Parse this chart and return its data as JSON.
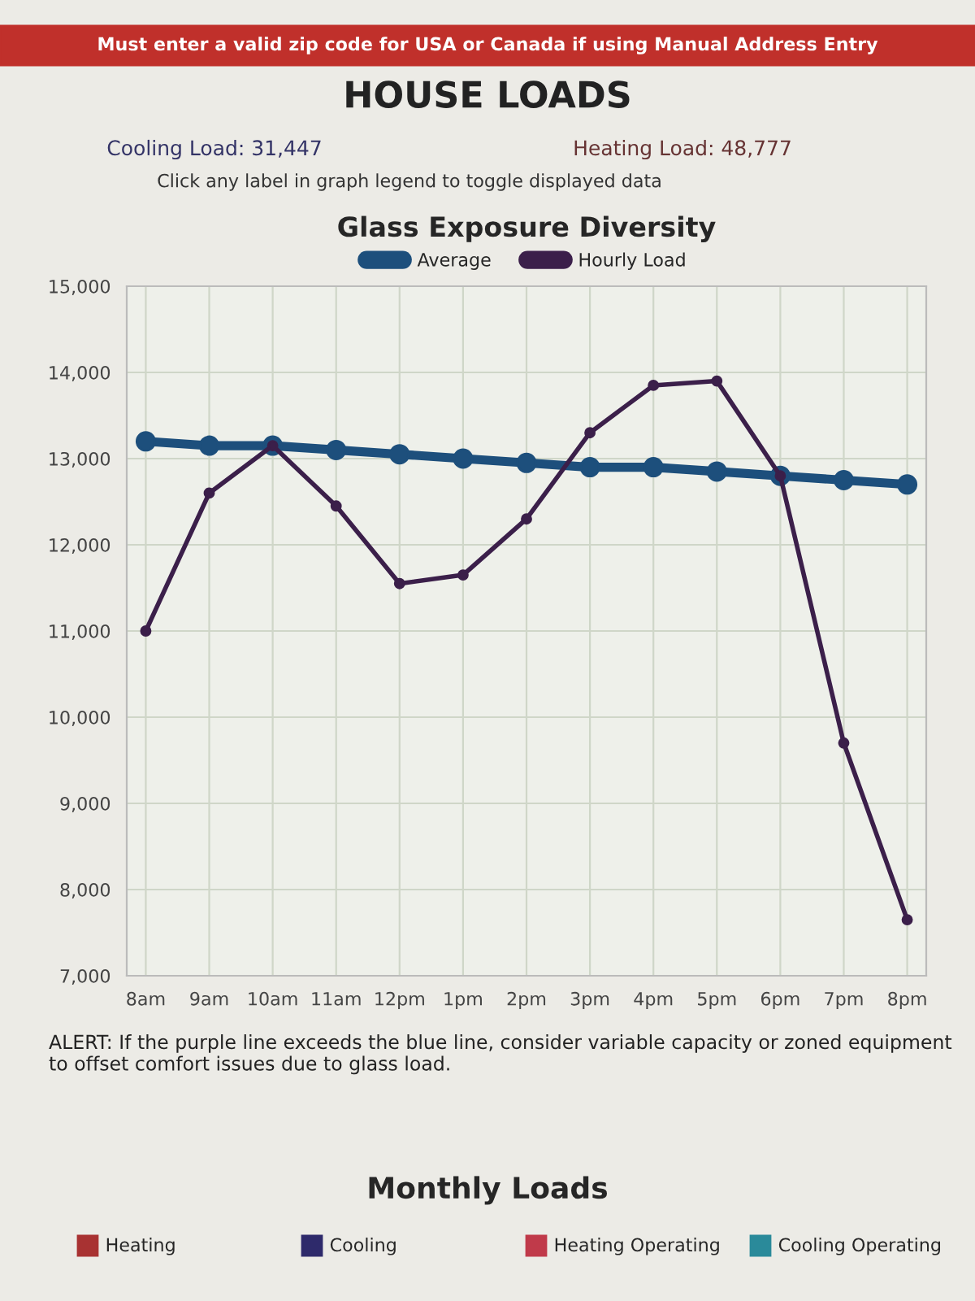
{
  "chart_data": [
    {
      "type": "line",
      "title": "Glass Exposure Diversity",
      "categories": [
        "8am",
        "9am",
        "10am",
        "11am",
        "12pm",
        "1pm",
        "2pm",
        "3pm",
        "4pm",
        "5pm",
        "6pm",
        "7pm",
        "8pm"
      ],
      "series": [
        {
          "name": "Average",
          "color": "#1d4f7c",
          "values": [
            13200,
            13150,
            13150,
            13100,
            13050,
            13000,
            12950,
            12900,
            12900,
            12850,
            12800,
            12750,
            12700
          ]
        },
        {
          "name": "Hourly Load",
          "color": "#3b1f4a",
          "values": [
            11000,
            12600,
            13150,
            12450,
            11550,
            11650,
            12300,
            13300,
            13850,
            13900,
            12800,
            9700,
            7650
          ]
        }
      ],
      "ylim": [
        7000,
        15000
      ],
      "yticks": [
        {
          "value": 7000,
          "label": "7,000"
        },
        {
          "value": 8000,
          "label": "8,000"
        },
        {
          "value": 9000,
          "label": "9,000"
        },
        {
          "value": 10000,
          "label": "10,000"
        },
        {
          "value": 11000,
          "label": "11,000"
        },
        {
          "value": 12000,
          "label": "12,000"
        },
        {
          "value": 13000,
          "label": "13,000"
        },
        {
          "value": 14000,
          "label": "14,000"
        },
        {
          "value": 15000,
          "label": "15,000"
        }
      ],
      "grid": true,
      "legend": "top",
      "marker": "circle",
      "line_style": "solid",
      "annotations": [
        "Must enter a valid zip code for USA or Canada if using Manual Address Entry",
        "HOUSE LOADS",
        "Cooling Load: 31,447",
        "Heating Load: 48,777",
        "Click any label in graph legend to toggle displayed data",
        "ALERT: If the purple line exceeds the blue line, consider variable capacity or zoned equipment to offset comfort issues due to glass load."
      ]
    },
    {
      "type": "other",
      "title": "Monthly Loads",
      "annotations": [
        "Heating",
        "Cooling",
        "Heating Operating",
        "Cooling Operating"
      ]
    }
  ]
}
